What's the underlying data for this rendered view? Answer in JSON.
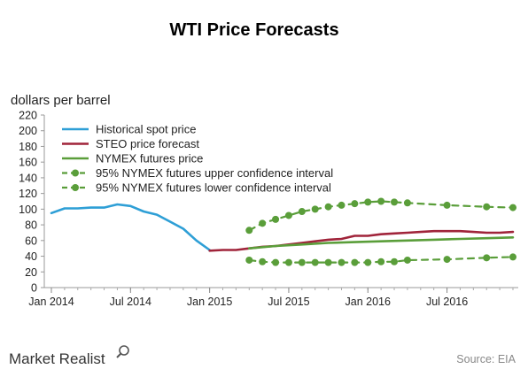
{
  "chart_data": {
    "type": "line",
    "title": "WTI Price Forecasts",
    "ylabel": "dollars per barrel",
    "xlabel": "",
    "ylim": [
      0,
      220
    ],
    "yticks": [
      0,
      20,
      40,
      60,
      80,
      100,
      120,
      140,
      160,
      180,
      200,
      220
    ],
    "xlim": [
      "2014-01",
      "2016-12"
    ],
    "xticks": [
      {
        "date": "2014-01",
        "label": "Jan 2014"
      },
      {
        "date": "2014-07",
        "label": "Jul 2014"
      },
      {
        "date": "2015-01",
        "label": "Jan 2015"
      },
      {
        "date": "2015-07",
        "label": "Jul 2015"
      },
      {
        "date": "2016-01",
        "label": "Jan 2016"
      },
      {
        "date": "2016-07",
        "label": "Jul 2016"
      }
    ],
    "grid": false,
    "legend_position": "top-left",
    "series": [
      {
        "name": "Historical spot price",
        "color": "#2e9fd6",
        "style": "solid",
        "x": [
          "2014-01",
          "2014-02",
          "2014-03",
          "2014-04",
          "2014-05",
          "2014-06",
          "2014-07",
          "2014-08",
          "2014-09",
          "2014-10",
          "2014-11",
          "2014-12",
          "2015-01"
        ],
        "y": [
          95,
          101,
          101,
          102,
          102,
          106,
          104,
          97,
          93,
          84,
          75,
          60,
          48
        ]
      },
      {
        "name": "STEO price forecast",
        "color": "#a0243a",
        "style": "solid",
        "x": [
          "2015-01",
          "2015-02",
          "2015-03",
          "2015-04",
          "2015-05",
          "2015-06",
          "2015-07",
          "2015-08",
          "2015-09",
          "2015-10",
          "2015-11",
          "2015-12",
          "2016-01",
          "2016-02",
          "2016-03",
          "2016-04",
          "2016-05",
          "2016-06",
          "2016-07",
          "2016-08",
          "2016-09",
          "2016-10",
          "2016-11",
          "2016-12"
        ],
        "y": [
          47,
          48,
          48,
          50,
          52,
          53,
          55,
          57,
          59,
          61,
          62,
          66,
          66,
          68,
          69,
          70,
          71,
          72,
          72,
          72,
          71,
          70,
          70,
          71
        ]
      },
      {
        "name": "NYMEX futures price",
        "color": "#5a9e3a",
        "style": "solid",
        "x": [
          "2015-04",
          "2015-06",
          "2015-08",
          "2015-10",
          "2015-12",
          "2016-02",
          "2016-04",
          "2016-06",
          "2016-08",
          "2016-10",
          "2016-12"
        ],
        "y": [
          50,
          53,
          55,
          57,
          58,
          59,
          60,
          61,
          62,
          63,
          64
        ]
      },
      {
        "name": "95% NYMEX futures upper confidence interval",
        "color": "#5a9e3a",
        "style": "dashed-dot",
        "x": [
          "2015-04",
          "2015-05",
          "2015-06",
          "2015-07",
          "2015-08",
          "2015-09",
          "2015-10",
          "2015-11",
          "2015-12",
          "2016-01",
          "2016-02",
          "2016-03",
          "2016-04",
          "2016-07",
          "2016-10",
          "2016-12"
        ],
        "y": [
          73,
          82,
          87,
          92,
          97,
          100,
          103,
          105,
          107,
          109,
          110,
          109,
          108,
          105,
          103,
          102
        ]
      },
      {
        "name": "95% NYMEX futures lower confidence interval",
        "color": "#5a9e3a",
        "style": "dashed-dot",
        "x": [
          "2015-04",
          "2015-05",
          "2015-06",
          "2015-07",
          "2015-08",
          "2015-09",
          "2015-10",
          "2015-11",
          "2015-12",
          "2016-01",
          "2016-02",
          "2016-03",
          "2016-04",
          "2016-07",
          "2016-10",
          "2016-12"
        ],
        "y": [
          35,
          33,
          32,
          32,
          32,
          32,
          32,
          32,
          32,
          32,
          33,
          33,
          35,
          36,
          38,
          39
        ]
      }
    ]
  },
  "footer": {
    "brand": "Market Realist",
    "source": "Source: EIA"
  }
}
